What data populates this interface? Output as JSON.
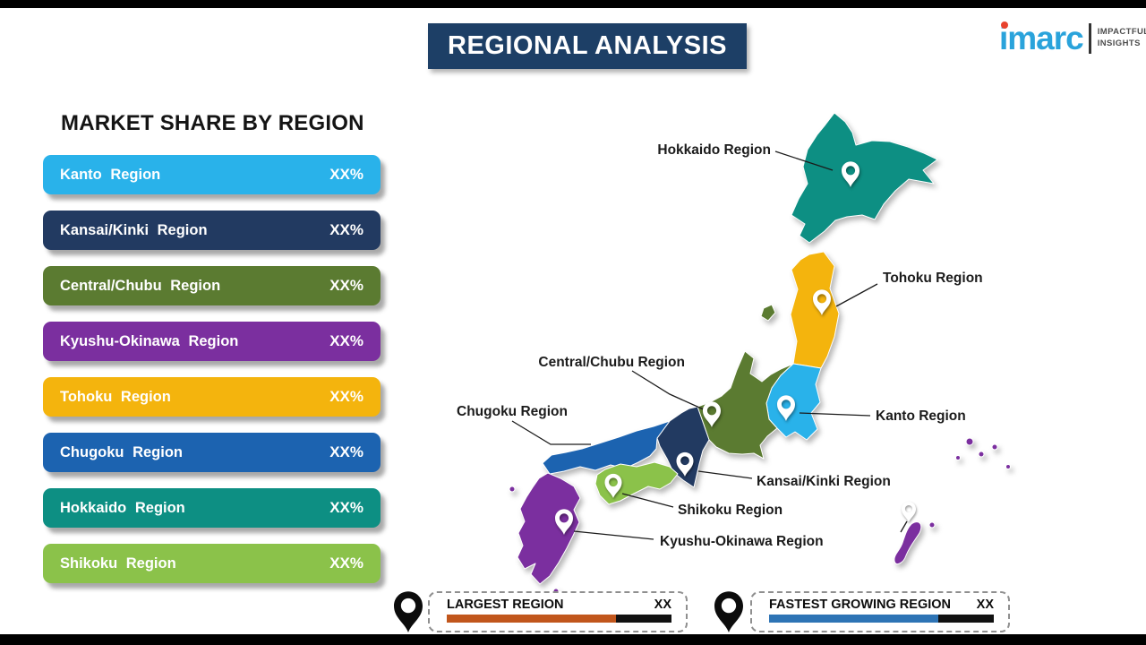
{
  "title": "REGIONAL ANALYSIS",
  "logo": {
    "brand": "imarc",
    "tagline1": "IMPACTFUL",
    "tagline2": "INSIGHTS"
  },
  "market_share": {
    "heading": "MARKET SHARE BY REGION",
    "items": [
      {
        "label": "Kanto Region",
        "value": "XX%",
        "color": "#29b2ea"
      },
      {
        "label": "Kansai/Kinki Region",
        "value": "XX%",
        "color": "#223a61"
      },
      {
        "label": "Central/Chubu Region",
        "value": "XX%",
        "color": "#5b7b31"
      },
      {
        "label": "Kyushu-Okinawa Region",
        "value": "XX%",
        "color": "#7b2f9f"
      },
      {
        "label": "Tohoku Region",
        "value": "XX%",
        "color": "#f4b40d"
      },
      {
        "label": "Chugoku Region",
        "value": "XX%",
        "color": "#1c63b0"
      },
      {
        "label": "Hokkaido Region",
        "value": "XX%",
        "color": "#0d8f83"
      },
      {
        "label": "Shikoku Region",
        "value": "XX%",
        "color": "#8bc24a"
      }
    ]
  },
  "chart_data": {
    "type": "table",
    "title": "MARKET SHARE BY REGION",
    "categories": [
      "Kanto Region",
      "Kansai/Kinki Region",
      "Central/Chubu Region",
      "Kyushu-Okinawa Region",
      "Tohoku Region",
      "Chugoku Region",
      "Hokkaido Region",
      "Shikoku Region"
    ],
    "values": [
      "XX%",
      "XX%",
      "XX%",
      "XX%",
      "XX%",
      "XX%",
      "XX%",
      "XX%"
    ]
  },
  "map": {
    "labels": {
      "hokkaido": "Hokkaido Region",
      "tohoku": "Tohoku Region",
      "chubu": "Central/Chubu Region",
      "kanto": "Kanto Region",
      "chugoku": "Chugoku Region",
      "kansai": "Kansai/Kinki Region",
      "shikoku": "Shikoku Region",
      "kyushu_okinawa": "Kyushu-Okinawa Region"
    },
    "colors": {
      "hokkaido": "#0d8f83",
      "tohoku": "#f4b40d",
      "kanto": "#29b2ea",
      "chubu": "#5b7b31",
      "kansai": "#223a61",
      "chugoku": "#1c63b0",
      "shikoku": "#8bc24a",
      "kyushu_okinawa": "#7b2f9f"
    }
  },
  "legend": {
    "largest": {
      "label": "LARGEST REGION",
      "value": "XX",
      "accent": "#c1561c"
    },
    "fastest": {
      "label": "FASTEST GROWING REGION",
      "value": "XX",
      "accent": "#2e74b5"
    }
  }
}
